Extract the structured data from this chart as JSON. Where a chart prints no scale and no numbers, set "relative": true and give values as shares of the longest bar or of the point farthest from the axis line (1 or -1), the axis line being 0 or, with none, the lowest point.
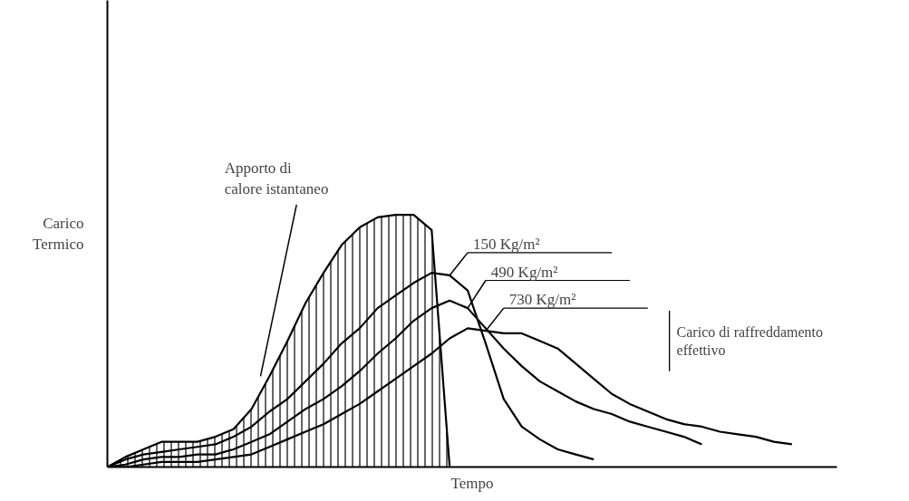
{
  "chart_data": {
    "type": "line",
    "relative": true,
    "xlabel": "Tempo",
    "ylabel": "Carico\nTermico",
    "categories": [
      null,
      null,
      null,
      null,
      null,
      null,
      null,
      null,
      null,
      null,
      null,
      null,
      null,
      null,
      null,
      null,
      null,
      null,
      null,
      null,
      null,
      null,
      null,
      null,
      null,
      null,
      null,
      null,
      null,
      null,
      null,
      null,
      null,
      null,
      null,
      null,
      null,
      null,
      null,
      null
    ],
    "series": [
      {
        "name": "Apporto di calore istantaneo",
        "type": "area",
        "color": "#000000",
        "values": [
          0,
          0.04,
          0.07,
          0.1,
          0.1,
          0.1,
          0.12,
          0.15,
          0.23,
          0.36,
          0.5,
          0.65,
          0.77,
          0.88,
          0.95,
          0.99,
          1.0,
          1.0,
          0.94,
          0,
          null,
          null,
          null,
          null,
          null,
          null,
          null,
          null,
          null,
          null,
          null,
          null,
          null,
          null,
          null,
          null,
          null,
          null,
          null,
          null
        ]
      },
      {
        "name": "150 Kg/m²",
        "color": "#000000",
        "values": [
          0,
          0.03,
          0.05,
          0.06,
          0.07,
          0.08,
          0.09,
          0.12,
          0.16,
          0.22,
          0.27,
          0.34,
          0.41,
          0.49,
          0.55,
          0.63,
          0.68,
          0.73,
          0.77,
          0.76,
          0.7,
          0.49,
          0.27,
          0.16,
          0.11,
          0.07,
          0.05,
          0.03,
          null,
          null,
          null,
          null,
          null,
          null,
          null,
          null,
          null,
          null,
          null,
          null
        ]
      },
      {
        "name": "490 Kg/m²",
        "color": "#000000",
        "values": [
          0,
          0.01,
          0.03,
          0.04,
          0.04,
          0.05,
          0.05,
          0.07,
          0.1,
          0.13,
          0.18,
          0.23,
          0.27,
          0.32,
          0.38,
          0.45,
          0.51,
          0.58,
          0.63,
          0.66,
          0.63,
          0.55,
          0.47,
          0.4,
          0.34,
          0.3,
          0.26,
          0.23,
          0.21,
          0.18,
          0.16,
          0.14,
          0.12,
          0.09,
          null,
          null,
          null,
          null,
          null,
          null
        ]
      },
      {
        "name": "730 Kg/m²",
        "color": "#000000",
        "values": [
          0,
          0,
          0.01,
          0.02,
          0.02,
          0.02,
          0.03,
          0.04,
          0.05,
          0.08,
          0.11,
          0.14,
          0.17,
          0.21,
          0.25,
          0.3,
          0.35,
          0.4,
          0.45,
          0.51,
          0.55,
          0.54,
          0.53,
          0.53,
          0.5,
          0.47,
          0.41,
          0.35,
          0.29,
          0.25,
          0.22,
          0.19,
          0.17,
          0.16,
          0.14,
          0.13,
          0.12,
          0.1,
          0.09,
          null
        ]
      }
    ],
    "annotations": [
      "Carico di raffreddamento\neffettivo"
    ]
  }
}
